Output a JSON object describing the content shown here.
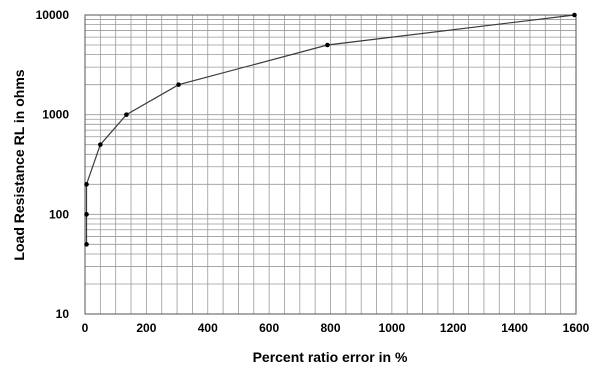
{
  "chart_data": {
    "type": "line",
    "xlabel": "Percent ratio error in %",
    "ylabel": "Load Resistance RL in ohms",
    "xlim": [
      0,
      1600
    ],
    "ylim": [
      10,
      10000
    ],
    "y_scale": "log",
    "grid": true,
    "x_ticks": [
      "0",
      "200",
      "400",
      "600",
      "800",
      "1000",
      "1200",
      "1400",
      "1600"
    ],
    "y_ticks": [
      "10",
      "100",
      "1000",
      "10000"
    ],
    "series": [
      {
        "points": [
          {
            "x": 5,
            "y": 50
          },
          {
            "x": 5,
            "y": 100
          },
          {
            "x": 5,
            "y": 200
          },
          {
            "x": 50,
            "y": 500
          },
          {
            "x": 135,
            "y": 1000
          },
          {
            "x": 305,
            "y": 2000
          },
          {
            "x": 790,
            "y": 5000
          },
          {
            "x": 1595,
            "y": 10000
          }
        ],
        "color": "#3a3a3a"
      }
    ]
  }
}
